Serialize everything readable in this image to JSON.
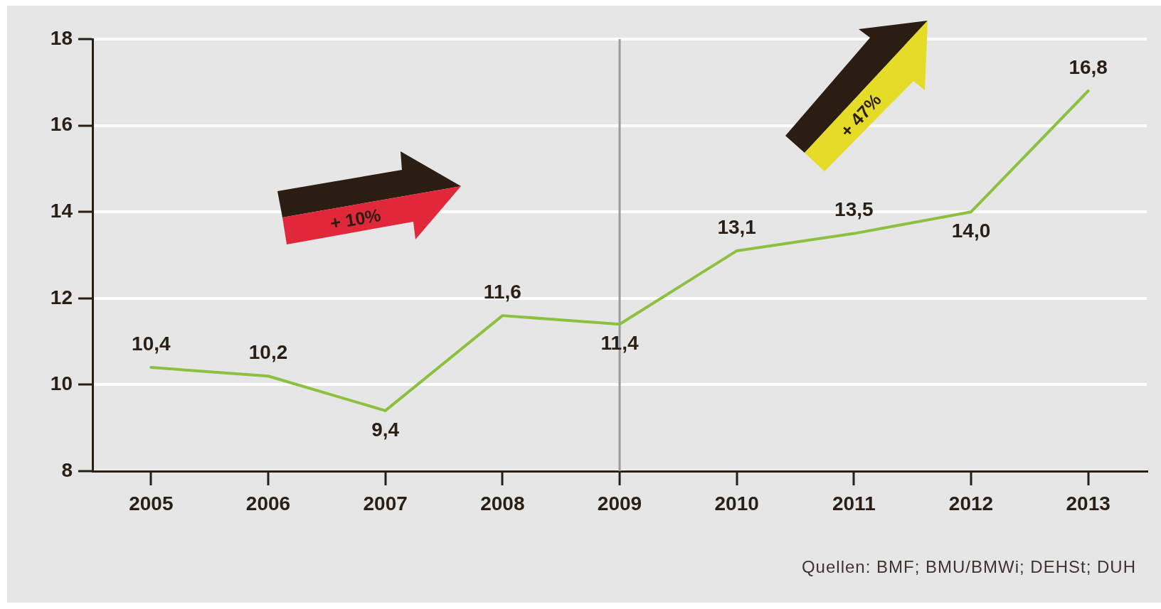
{
  "chart_data": {
    "type": "line",
    "categories": [
      "2005",
      "2006",
      "2007",
      "2008",
      "2009",
      "2010",
      "2011",
      "2012",
      "2013"
    ],
    "values": [
      10.4,
      10.2,
      9.4,
      11.6,
      11.4,
      13.1,
      13.5,
      14.0,
      16.8
    ],
    "value_labels": [
      "10,4",
      "10,2",
      "9,4",
      "11,6",
      "11,4",
      "13,1",
      "13,5",
      "14,0",
      "16,8"
    ],
    "color": "#8cc03f",
    "ylim": [
      8,
      18
    ],
    "yticks": [
      8,
      10,
      12,
      14,
      16,
      18
    ],
    "grid": "y",
    "marker": "none",
    "line_style": "solid",
    "ref_lines": [
      {
        "axis": "x",
        "value": "2009",
        "color": "#9b9b9b"
      }
    ],
    "annotations": [
      "+ 10%",
      "+ 47%",
      "Quellen: BMF; BMU/BMWi; DEHSt; DUH"
    ]
  }
}
